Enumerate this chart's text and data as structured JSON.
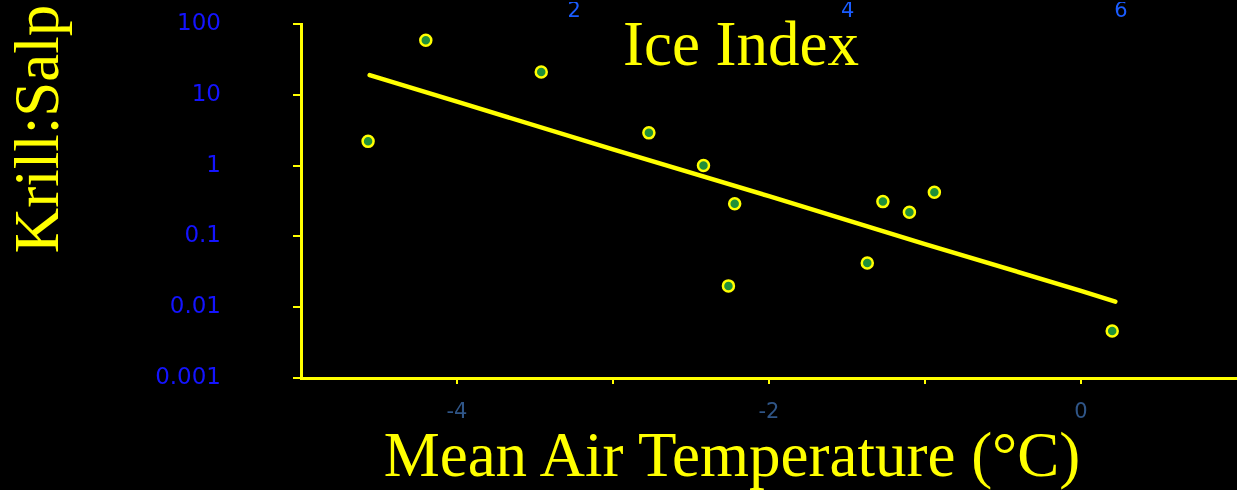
{
  "chart_data": {
    "type": "scatter",
    "xlabel": "Mean Air Temperature (°C)",
    "ylabel": "Krill:Salp",
    "x2label": "Ice Index",
    "xlim": [
      -5,
      1
    ],
    "xticks": [
      -4,
      {
        "value": -3,
        "label": null
      },
      -2,
      {
        "value": -1,
        "label": null
      },
      0
    ],
    "ylim": [
      0.001,
      100
    ],
    "yticks": [
      100,
      10,
      1,
      0.1,
      0.01,
      0.001
    ],
    "log": "y",
    "x2lim": [
      0,
      6.85
    ],
    "x2ticks": [
      2,
      4,
      6
    ],
    "marker": "circle",
    "series": [
      {
        "type": "scatter",
        "color": "#ffff00",
        "x": [
          -4.57,
          -4.2,
          -3.46,
          -2.77,
          -2.42,
          -2.26,
          -2.22,
          -1.37,
          -1.27,
          -1.1,
          -0.94,
          0.2
        ],
        "values": [
          2.2,
          59,
          21,
          2.9,
          1.0,
          0.02,
          0.29,
          0.042,
          0.31,
          0.22,
          0.42,
          0.0046
        ]
      },
      {
        "type": "line",
        "color": "#ffff00",
        "marker": "none",
        "x": [
          -4.56,
          -4,
          -3,
          -2,
          -1,
          0,
          0.22
        ],
        "values": [
          19,
          8,
          1.7,
          0.37,
          0.078,
          0.017,
          0.012
        ]
      }
    ]
  }
}
